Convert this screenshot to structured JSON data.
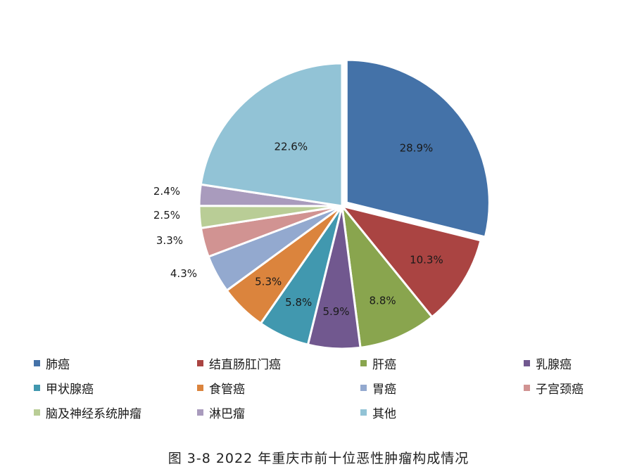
{
  "chart_data": {
    "type": "pie",
    "slices": [
      {
        "name": "肺癌",
        "value": 28.9,
        "label": "28.9%",
        "color": "#4472A8"
      },
      {
        "name": "结直肠肛门癌",
        "value": 10.3,
        "label": "10.3%",
        "color": "#AA4442"
      },
      {
        "name": "肝癌",
        "value": 8.8,
        "label": "8.8%",
        "color": "#89A54E"
      },
      {
        "name": "乳腺癌",
        "value": 5.9,
        "label": "5.9%",
        "color": "#71588F"
      },
      {
        "name": "甲状腺癌",
        "value": 5.8,
        "label": "5.8%",
        "color": "#4198AF"
      },
      {
        "name": "食管癌",
        "value": 5.3,
        "label": "5.3%",
        "color": "#DB843D"
      },
      {
        "name": "胃癌",
        "value": 4.3,
        "label": "4.3%",
        "color": "#93A9CF"
      },
      {
        "name": "子宫颈癌",
        "value": 3.3,
        "label": "3.3%",
        "color": "#D19392"
      },
      {
        "name": "脑及神经系统肿瘤",
        "value": 2.5,
        "label": "2.5%",
        "color": "#B9CD96"
      },
      {
        "name": "淋巴瘤",
        "value": 2.4,
        "label": "2.4%",
        "color": "#A99BBD"
      },
      {
        "name": "其他",
        "value": 22.6,
        "label": "22.6%",
        "color": "#92C3D6"
      }
    ],
    "legend_placement": "bottom"
  },
  "caption": "图 3-8   2022 年重庆市前十位恶性肿瘤构成情况"
}
